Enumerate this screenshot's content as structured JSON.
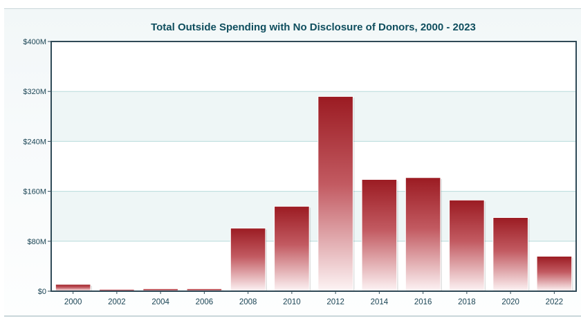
{
  "chart_data": {
    "type": "bar",
    "title": "Total Outside Spending with No Disclosure of Donors, 2000 - 2023",
    "xlabel": "",
    "ylabel": "",
    "categories": [
      "2000",
      "2002",
      "2004",
      "2006",
      "2008",
      "2010",
      "2012",
      "2014",
      "2016",
      "2018",
      "2020",
      "2022"
    ],
    "values": [
      11,
      3,
      4,
      4,
      101,
      136,
      312,
      179,
      182,
      146,
      118,
      56
    ],
    "value_unit": "millions of dollars",
    "ylim": [
      0,
      400
    ],
    "yticks": [
      0,
      80,
      160,
      240,
      320,
      400
    ],
    "ytick_labels": [
      "$0",
      "$80M",
      "$160M",
      "$240M",
      "$320M",
      "$400M"
    ],
    "grid": true,
    "bar_color_top": "#9b1b22",
    "bar_color_bottom": "#fdf4f5",
    "axis_color": "#2f4a57",
    "grid_color": "#b7dcdc",
    "band_color": "#eef6f6"
  }
}
